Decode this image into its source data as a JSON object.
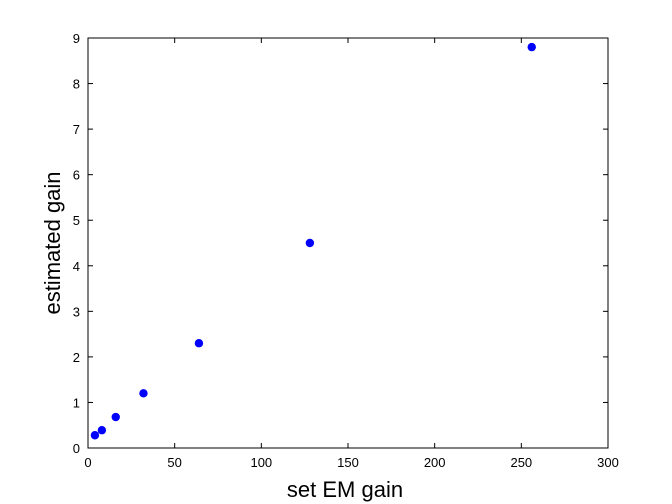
{
  "chart_data": {
    "type": "scatter",
    "title": "",
    "xlabel": "set EM gain",
    "ylabel": "estimated gain",
    "xlim": [
      0,
      300
    ],
    "ylim": [
      0,
      9
    ],
    "x_ticks": [
      "0",
      "50",
      "100",
      "150",
      "200",
      "250",
      "300"
    ],
    "y_ticks": [
      "0",
      "1",
      "2",
      "3",
      "4",
      "5",
      "6",
      "7",
      "8",
      "9"
    ],
    "grid": false,
    "series": [
      {
        "color": "#0000ff",
        "marker": "circle",
        "points": [
          {
            "x": 4,
            "y": 0.28
          },
          {
            "x": 8,
            "y": 0.39
          },
          {
            "x": 16,
            "y": 0.68
          },
          {
            "x": 32,
            "y": 1.2
          },
          {
            "x": 64,
            "y": 2.3
          },
          {
            "x": 128,
            "y": 4.5
          },
          {
            "x": 256,
            "y": 8.8
          }
        ]
      }
    ]
  }
}
